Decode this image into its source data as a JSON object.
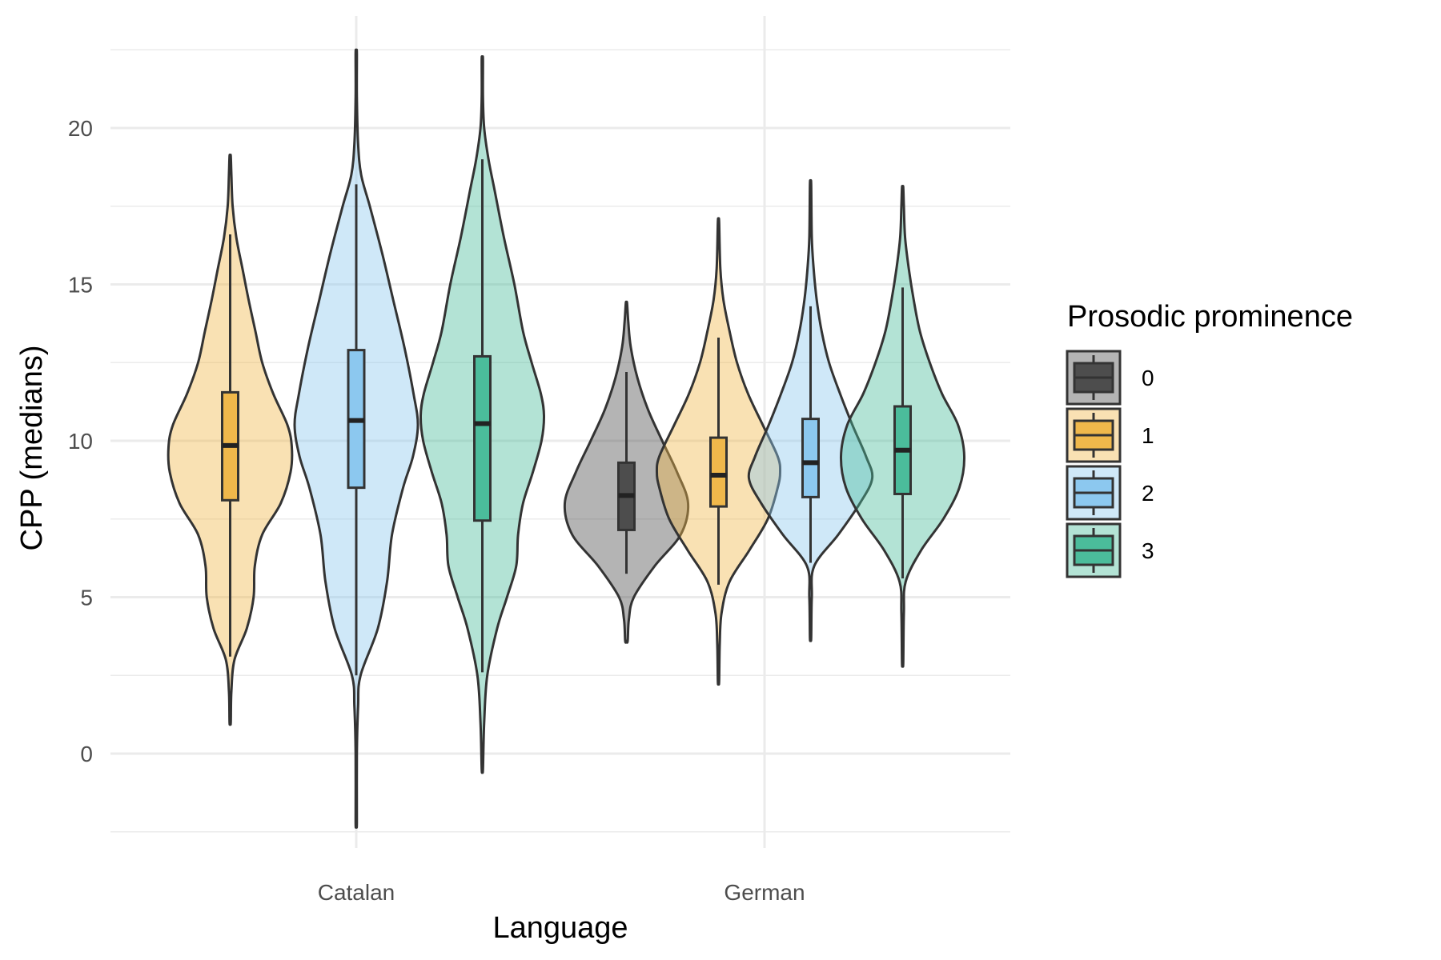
{
  "chart_data": {
    "type": "violin",
    "title": "",
    "xlabel": "Language",
    "ylabel": "CPP (medians)",
    "categories": [
      "Catalan",
      "German"
    ],
    "ylim": [
      -2.5,
      23.5
    ],
    "yticks": [
      0,
      5,
      10,
      15,
      20
    ],
    "grid": true,
    "legend": {
      "title": "Prosodic prominence",
      "placement": "right",
      "entries": [
        {
          "label": "0",
          "color": "#4d4d4d"
        },
        {
          "label": "1",
          "color": "#f0b84b"
        },
        {
          "label": "2",
          "color": "#8cc8ef"
        },
        {
          "label": "3",
          "color": "#4bbc9b"
        }
      ]
    },
    "series": [
      {
        "language": "Catalan",
        "prominence": "1",
        "color": "#f0b84b",
        "min": 1.0,
        "max": 19.1,
        "q1": 8.1,
        "median": 9.85,
        "q3": 11.55,
        "whisker_low": 3.1,
        "whisker_high": 16.6,
        "density": [
          [
            1.0,
            0.01
          ],
          [
            2.0,
            0.02
          ],
          [
            3.0,
            0.07
          ],
          [
            4.0,
            0.27
          ],
          [
            5.0,
            0.38
          ],
          [
            6.0,
            0.4
          ],
          [
            7.0,
            0.52
          ],
          [
            8.0,
            0.82
          ],
          [
            9.0,
            0.98
          ],
          [
            9.8,
            1.0
          ],
          [
            10.5,
            0.93
          ],
          [
            11.5,
            0.7
          ],
          [
            12.5,
            0.52
          ],
          [
            13.5,
            0.41
          ],
          [
            14.5,
            0.3
          ],
          [
            15.5,
            0.2
          ],
          [
            16.5,
            0.1
          ],
          [
            17.5,
            0.04
          ],
          [
            18.5,
            0.02
          ],
          [
            19.1,
            0.01
          ]
        ]
      },
      {
        "language": "Catalan",
        "prominence": "2",
        "color": "#8cc8ef",
        "min": -2.2,
        "max": 22.4,
        "q1": 8.5,
        "median": 10.65,
        "q3": 12.9,
        "whisker_low": 2.5,
        "whisker_high": 18.2,
        "density": [
          [
            -2.2,
            0.01
          ],
          [
            0.0,
            0.01
          ],
          [
            1.5,
            0.03
          ],
          [
            2.5,
            0.07
          ],
          [
            4.0,
            0.35
          ],
          [
            5.5,
            0.5
          ],
          [
            7.0,
            0.58
          ],
          [
            8.5,
            0.76
          ],
          [
            9.5,
            0.92
          ],
          [
            10.5,
            1.0
          ],
          [
            11.5,
            0.93
          ],
          [
            13.0,
            0.78
          ],
          [
            14.5,
            0.6
          ],
          [
            16.0,
            0.42
          ],
          [
            17.5,
            0.22
          ],
          [
            18.5,
            0.08
          ],
          [
            19.5,
            0.03
          ],
          [
            21.0,
            0.01
          ],
          [
            22.4,
            0.01
          ]
        ]
      },
      {
        "language": "Catalan",
        "prominence": "3",
        "color": "#4bbc9b",
        "min": -0.5,
        "max": 22.2,
        "q1": 7.45,
        "median": 10.55,
        "q3": 12.7,
        "whisker_low": 2.6,
        "whisker_high": 19.0,
        "density": [
          [
            -0.5,
            0.01
          ],
          [
            1.0,
            0.03
          ],
          [
            2.5,
            0.08
          ],
          [
            4.0,
            0.24
          ],
          [
            5.0,
            0.4
          ],
          [
            6.0,
            0.55
          ],
          [
            7.0,
            0.58
          ],
          [
            8.0,
            0.66
          ],
          [
            9.0,
            0.82
          ],
          [
            10.0,
            0.96
          ],
          [
            10.8,
            1.0
          ],
          [
            11.5,
            0.95
          ],
          [
            12.5,
            0.8
          ],
          [
            13.5,
            0.66
          ],
          [
            15.0,
            0.52
          ],
          [
            16.5,
            0.35
          ],
          [
            18.0,
            0.2
          ],
          [
            19.0,
            0.1
          ],
          [
            20.0,
            0.03
          ],
          [
            21.0,
            0.01
          ],
          [
            22.2,
            0.01
          ]
        ]
      },
      {
        "language": "German",
        "prominence": "0",
        "color": "#4d4d4d",
        "min": 3.6,
        "max": 14.4,
        "q1": 7.15,
        "median": 8.25,
        "q3": 9.3,
        "whisker_low": 5.75,
        "whisker_high": 12.2,
        "density": [
          [
            3.6,
            0.02
          ],
          [
            4.3,
            0.04
          ],
          [
            5.0,
            0.12
          ],
          [
            6.0,
            0.46
          ],
          [
            7.0,
            0.88
          ],
          [
            8.0,
            1.0
          ],
          [
            9.0,
            0.82
          ],
          [
            10.0,
            0.58
          ],
          [
            11.0,
            0.35
          ],
          [
            12.0,
            0.18
          ],
          [
            13.0,
            0.07
          ],
          [
            13.8,
            0.03
          ],
          [
            14.4,
            0.01
          ]
        ]
      },
      {
        "language": "German",
        "prominence": "1",
        "color": "#f0b84b",
        "min": 2.3,
        "max": 17.0,
        "q1": 7.9,
        "median": 8.9,
        "q3": 10.1,
        "whisker_low": 5.4,
        "whisker_high": 13.3,
        "density": [
          [
            2.3,
            0.01
          ],
          [
            3.5,
            0.02
          ],
          [
            4.5,
            0.05
          ],
          [
            5.5,
            0.18
          ],
          [
            6.5,
            0.5
          ],
          [
            7.5,
            0.8
          ],
          [
            8.5,
            0.96
          ],
          [
            9.0,
            1.0
          ],
          [
            9.5,
            0.96
          ],
          [
            10.5,
            0.72
          ],
          [
            11.5,
            0.48
          ],
          [
            12.5,
            0.3
          ],
          [
            13.5,
            0.18
          ],
          [
            14.5,
            0.08
          ],
          [
            15.5,
            0.03
          ],
          [
            17.0,
            0.01
          ]
        ]
      },
      {
        "language": "German",
        "prominence": "2",
        "color": "#8cc8ef",
        "min": 3.7,
        "max": 18.2,
        "q1": 8.2,
        "median": 9.3,
        "q3": 10.7,
        "whisker_low": 6.1,
        "whisker_high": 14.3,
        "density": [
          [
            3.7,
            0.01
          ],
          [
            5.0,
            0.02
          ],
          [
            6.0,
            0.06
          ],
          [
            7.0,
            0.45
          ],
          [
            8.0,
            0.8
          ],
          [
            8.8,
            1.0
          ],
          [
            9.5,
            0.9
          ],
          [
            10.5,
            0.68
          ],
          [
            11.5,
            0.48
          ],
          [
            12.5,
            0.3
          ],
          [
            13.5,
            0.18
          ],
          [
            14.5,
            0.1
          ],
          [
            15.5,
            0.05
          ],
          [
            16.5,
            0.02
          ],
          [
            18.2,
            0.01
          ]
        ]
      },
      {
        "language": "German",
        "prominence": "3",
        "color": "#4bbc9b",
        "min": 2.9,
        "max": 18.1,
        "q1": 8.3,
        "median": 9.7,
        "q3": 11.1,
        "whisker_low": 5.6,
        "whisker_high": 14.9,
        "density": [
          [
            2.9,
            0.01
          ],
          [
            4.5,
            0.02
          ],
          [
            5.5,
            0.05
          ],
          [
            6.5,
            0.3
          ],
          [
            7.5,
            0.66
          ],
          [
            8.5,
            0.92
          ],
          [
            9.5,
            1.0
          ],
          [
            10.5,
            0.9
          ],
          [
            11.5,
            0.64
          ],
          [
            12.5,
            0.44
          ],
          [
            13.5,
            0.28
          ],
          [
            14.5,
            0.18
          ],
          [
            15.5,
            0.1
          ],
          [
            16.5,
            0.04
          ],
          [
            17.5,
            0.02
          ],
          [
            18.1,
            0.01
          ]
        ]
      }
    ]
  }
}
